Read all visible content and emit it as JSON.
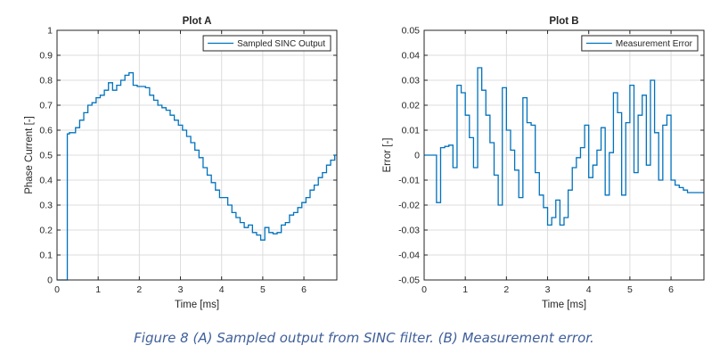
{
  "figure": {
    "caption": "Figure 8 (A) Sampled output from SINC filter. (B) Measurement error."
  },
  "chart_data": [
    {
      "type": "line",
      "title": "Plot A",
      "xlabel": "Time [ms]",
      "ylabel": "Phase Current [-]",
      "xlim": [
        0,
        6.8
      ],
      "ylim": [
        0,
        1
      ],
      "xticks": [
        "0",
        "1",
        "2",
        "3",
        "4",
        "5",
        "6"
      ],
      "yticks": [
        "0",
        "0.1",
        "0.2",
        "0.3",
        "0.4",
        "0.5",
        "0.6",
        "0.7",
        "0.8",
        "0.9",
        "1"
      ],
      "grid": true,
      "legend_position": "top-right",
      "step": true,
      "color": "#0072bd",
      "series": [
        {
          "name": "Sampled SINC Output",
          "x": [
            0,
            0.25,
            0.25,
            0.3,
            0.45,
            0.55,
            0.65,
            0.75,
            0.85,
            0.95,
            1.05,
            1.15,
            1.25,
            1.35,
            1.45,
            1.55,
            1.65,
            1.75,
            1.85,
            1.95,
            2.05,
            2.15,
            2.25,
            2.35,
            2.45,
            2.55,
            2.65,
            2.75,
            2.85,
            2.95,
            3.05,
            3.15,
            3.25,
            3.35,
            3.45,
            3.55,
            3.65,
            3.75,
            3.85,
            3.95,
            4.05,
            4.15,
            4.25,
            4.35,
            4.45,
            4.55,
            4.65,
            4.75,
            4.85,
            4.95,
            5.05,
            5.15,
            5.25,
            5.35,
            5.45,
            5.55,
            5.65,
            5.75,
            5.85,
            5.95,
            6.05,
            6.15,
            6.25,
            6.35,
            6.45,
            6.55,
            6.65,
            6.75
          ],
          "y": [
            0,
            0,
            0.585,
            0.59,
            0.61,
            0.64,
            0.67,
            0.7,
            0.71,
            0.73,
            0.74,
            0.76,
            0.79,
            0.76,
            0.78,
            0.8,
            0.82,
            0.83,
            0.78,
            0.775,
            0.775,
            0.77,
            0.74,
            0.72,
            0.7,
            0.69,
            0.68,
            0.66,
            0.64,
            0.62,
            0.6,
            0.575,
            0.55,
            0.52,
            0.49,
            0.45,
            0.42,
            0.39,
            0.36,
            0.33,
            0.33,
            0.3,
            0.27,
            0.25,
            0.23,
            0.21,
            0.22,
            0.19,
            0.18,
            0.16,
            0.21,
            0.19,
            0.185,
            0.19,
            0.22,
            0.23,
            0.26,
            0.27,
            0.29,
            0.31,
            0.33,
            0.36,
            0.38,
            0.41,
            0.43,
            0.46,
            0.48,
            0.5
          ]
        }
      ]
    },
    {
      "type": "line",
      "title": "Plot B",
      "xlabel": "Time [ms]",
      "ylabel": "Error [-]",
      "xlim": [
        0,
        6.8
      ],
      "ylim": [
        -0.05,
        0.05
      ],
      "xticks": [
        "0",
        "1",
        "2",
        "3",
        "4",
        "5",
        "6"
      ],
      "yticks": [
        "-0.05",
        "-0.04",
        "-0.03",
        "-0.02",
        "-0.01",
        "0",
        "0.01",
        "0.02",
        "0.03",
        "0.04",
        "0.05"
      ],
      "grid": true,
      "legend_position": "top-right",
      "step": true,
      "color": "#0072bd",
      "series": [
        {
          "name": "Measurement Error",
          "x": [
            0,
            0.3,
            0.4,
            0.5,
            0.6,
            0.7,
            0.8,
            0.9,
            1.0,
            1.1,
            1.2,
            1.3,
            1.4,
            1.5,
            1.6,
            1.7,
            1.8,
            1.9,
            2.0,
            2.1,
            2.2,
            2.3,
            2.4,
            2.5,
            2.6,
            2.7,
            2.8,
            2.9,
            3.0,
            3.1,
            3.2,
            3.3,
            3.4,
            3.5,
            3.6,
            3.7,
            3.8,
            3.9,
            4.0,
            4.1,
            4.2,
            4.3,
            4.4,
            4.5,
            4.6,
            4.7,
            4.8,
            4.9,
            5.0,
            5.1,
            5.2,
            5.3,
            5.4,
            5.5,
            5.6,
            5.7,
            5.8,
            5.9,
            6.0,
            6.1,
            6.2,
            6.3,
            6.4,
            6.5,
            6.6,
            6.7
          ],
          "y": [
            0,
            -0.019,
            0.003,
            0.0035,
            0.004,
            -0.005,
            0.028,
            0.025,
            0.016,
            0.007,
            -0.005,
            0.035,
            0.026,
            0.016,
            0.005,
            -0.008,
            -0.02,
            0.027,
            0.01,
            0.002,
            -0.006,
            -0.017,
            0.023,
            0.013,
            0.012,
            -0.007,
            -0.016,
            -0.021,
            -0.028,
            -0.025,
            -0.018,
            -0.028,
            -0.025,
            -0.014,
            -0.005,
            -0.001,
            0.003,
            0.012,
            -0.009,
            -0.004,
            0.002,
            0.011,
            -0.016,
            0.001,
            0.025,
            0.017,
            -0.016,
            0.013,
            0.028,
            -0.007,
            0.016,
            0.024,
            -0.004,
            0.03,
            0.009,
            -0.01,
            0.012,
            0.016,
            -0.01,
            -0.012,
            -0.013,
            -0.014,
            -0.015,
            -0.015,
            -0.015,
            -0.015
          ]
        }
      ]
    }
  ]
}
